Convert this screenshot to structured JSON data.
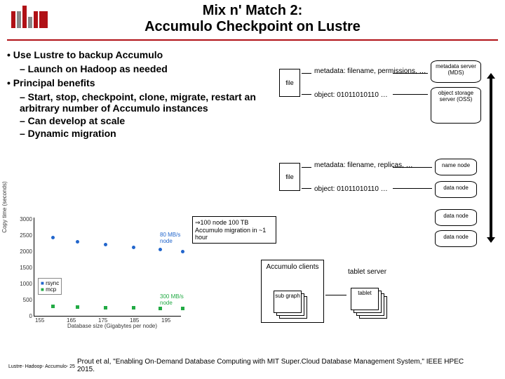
{
  "title": {
    "line1": "Mix n' Match 2:",
    "line2": "Accumulo Checkpoint on Lustre"
  },
  "bullets": {
    "b1a": "• Use Lustre to backup Accumulo",
    "b2a": "– Launch on Hadoop as needed",
    "b1b": "• Principal benefits",
    "b2b": "– Start, stop, checkpoint, clone, migrate, restart an arbitrary number of Accumulo instances",
    "b2c": "– Can develop at scale",
    "b2d": "– Dynamic migration"
  },
  "diagram": {
    "file": "file",
    "meta1": "metadata: filename, permissions, …",
    "obj1": "object: 01011010110 …",
    "meta2": "metadata: filename, replicas, …",
    "obj2": "object: 01011010110 …",
    "mds": "metadata server (MDS)",
    "oss": "object storage server (OSS)",
    "name": "name node",
    "data": "data node",
    "tserver": "tablet server",
    "tablet": "tablet",
    "acc_clients": "Accumulo clients",
    "subgraph": "sub graph",
    "callout": "⇒100 node 100 TB Accumulo migration in ~1 hour"
  },
  "chart": {
    "ylabel": "Copy time (seconds)",
    "xlabel": "Database size (Gigabytes per node)",
    "yticks": [
      "0",
      "500",
      "1000",
      "1500",
      "2000",
      "2500",
      "3000"
    ],
    "xticks": [
      "155",
      "165",
      "175",
      "185",
      "195"
    ],
    "r1": "80 MB/s node",
    "r2": "300 MB/s node",
    "legend": {
      "rsync": "rsync",
      "mcp": "mcp"
    },
    "blue": [
      [
        25,
        36
      ],
      [
        60,
        42
      ],
      [
        100,
        46
      ],
      [
        140,
        50
      ],
      [
        178,
        53
      ],
      [
        210,
        56
      ]
    ],
    "green": [
      [
        25,
        134
      ],
      [
        60,
        135
      ],
      [
        100,
        136
      ],
      [
        140,
        136
      ],
      [
        178,
        137
      ],
      [
        210,
        137
      ]
    ]
  },
  "footer": {
    "page": "Lustre- Hadoop- Accumulo- 25",
    "cite": "Prout et al, \"Enabling On-Demand Database Computing with MIT Super.Cloud Database Management System,\" IEEE HPEC 2015."
  },
  "colors": {
    "accent": "#b01116",
    "blue": "#2266cc",
    "green": "#22aa44"
  }
}
